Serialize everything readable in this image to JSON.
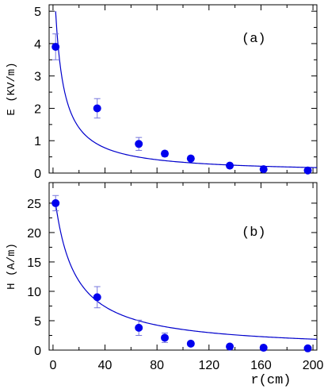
{
  "chart_data": [
    {
      "type": "scatter",
      "panel_label": "(a)",
      "ylabel": "E (KV/m)",
      "xlabel": "",
      "xlim": [
        -3,
        203
      ],
      "ylim": [
        0,
        5.2
      ],
      "xticks": [
        0,
        40,
        80,
        120,
        160,
        200
      ],
      "yticks": [
        0,
        1,
        2,
        3,
        4,
        5
      ],
      "ytick_labels": [
        "0",
        "1",
        "2",
        "3",
        "4",
        "5"
      ],
      "points": [
        {
          "x": 2,
          "y": 3.9,
          "err": 0.4
        },
        {
          "x": 34,
          "y": 2.0,
          "err": 0.3
        },
        {
          "x": 66,
          "y": 0.9,
          "err": 0.2
        },
        {
          "x": 86,
          "y": 0.6,
          "err": 0.08
        },
        {
          "x": 106,
          "y": 0.45,
          "err": 0.06
        },
        {
          "x": 136,
          "y": 0.23,
          "err": 0.04
        },
        {
          "x": 162,
          "y": 0.12,
          "err": 0.03
        },
        {
          "x": 196,
          "y": 0.08,
          "err": 0.03
        }
      ],
      "fit_curve": {
        "form": "a/(x+b)",
        "a": 35,
        "b": 5,
        "x_range": [
          2,
          203
        ]
      },
      "point_color": "#0000ee",
      "curve_color": "#0000cc",
      "errorbar_color": "#7777dd"
    },
    {
      "type": "scatter",
      "panel_label": "(b)",
      "ylabel": "H (A/m)",
      "xlabel": "r(cm)",
      "xlim": [
        -3,
        203
      ],
      "ylim": [
        0,
        28.5
      ],
      "xticks": [
        0,
        40,
        80,
        120,
        160,
        200
      ],
      "xtick_labels": [
        "0",
        "40",
        "80",
        "120",
        "160",
        "200"
      ],
      "yticks": [
        0,
        5,
        10,
        15,
        20,
        25
      ],
      "ytick_labels": [
        "0",
        "5",
        "10",
        "15",
        "20",
        "25"
      ],
      "points": [
        {
          "x": 2,
          "y": 25.0,
          "err": 1.3
        },
        {
          "x": 34,
          "y": 9.0,
          "err": 1.8
        },
        {
          "x": 66,
          "y": 3.8,
          "err": 1.3
        },
        {
          "x": 86,
          "y": 2.1,
          "err": 0.8
        },
        {
          "x": 106,
          "y": 1.1,
          "err": 0.4
        },
        {
          "x": 136,
          "y": 0.6,
          "err": 0.2
        },
        {
          "x": 162,
          "y": 0.4,
          "err": 0.15
        },
        {
          "x": 196,
          "y": 0.3,
          "err": 0.1
        }
      ],
      "fit_curve": {
        "form": "a*x^(-p)",
        "a": 28,
        "p": 1,
        "x_shift": 1,
        "note_range": [
          1,
          203
        ]
      },
      "point_color": "#0000ee",
      "curve_color": "#0000cc",
      "errorbar_color": "#7777dd"
    }
  ]
}
